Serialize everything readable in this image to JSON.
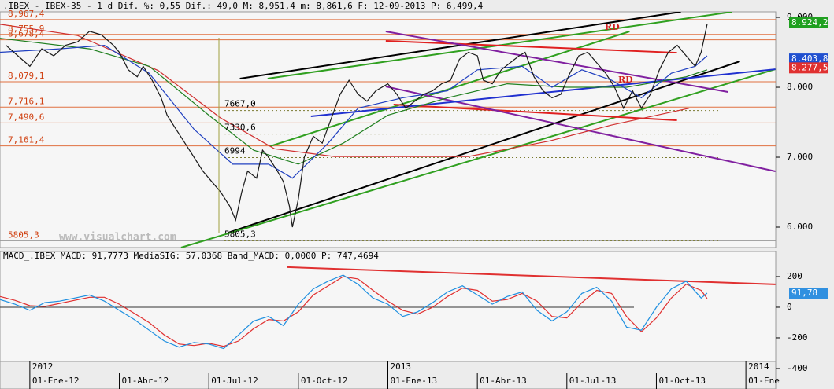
{
  "chart_data": [
    {
      "type": "line",
      "title": ".IBEX - IBEX-35 - 1 d Dif. %: 0,55 Dif.: 49,0 M: 8,951,4 m: 8,861,6 F: 12-09-2013 P: 6,499,4",
      "watermark": "www.visualchart.com",
      "annotations": [
        "RD",
        "RD"
      ],
      "xlim": [
        -1,
        25
      ],
      "ylim": [
        5708,
        9079
      ],
      "yticks": [
        {
          "value": 9000,
          "label": "9.000"
        },
        {
          "value": 8000,
          "label": "8.000"
        },
        {
          "value": 7000,
          "label": "7.000"
        },
        {
          "value": 6000,
          "label": "6.000"
        }
      ],
      "levels": [
        {
          "value": 8967.4,
          "label": "8,967,4"
        },
        {
          "value": 8755.9,
          "label": "8,755,9"
        },
        {
          "value": 8678.4,
          "label": "8,678,4"
        },
        {
          "value": 8079.1,
          "label": "8,079,1"
        },
        {
          "value": 7716.1,
          "label": "7,716,1"
        },
        {
          "value": 7490.6,
          "label": "7,490,6"
        },
        {
          "value": 7161.4,
          "label": "7,161,4"
        },
        {
          "value": 5805.3,
          "label": "5805,3"
        }
      ],
      "level_color": "#e07040",
      "notes": [
        {
          "value": 7667.0,
          "label": "7667,0"
        },
        {
          "value": 7330.6,
          "label": "7330,6"
        },
        {
          "value": 6994,
          "label": "6994"
        },
        {
          "value": 5805.3,
          "label": "5805,3"
        }
      ],
      "markers": [
        {
          "value": 8924.2,
          "label": "8.924,2",
          "color": "#20a020"
        },
        {
          "value": 8403.8,
          "label": "8.403,8",
          "color": "#2050d0"
        },
        {
          "value": 8277.5,
          "label": "8.277,5",
          "color": "#e03030"
        }
      ],
      "series": [
        {
          "color": "#d03030",
          "x": [
            -1,
            1.6,
            4.3,
            6.4,
            8.2,
            10.2,
            12.6,
            14.7,
            17.4,
            19.5,
            22.1
          ],
          "values": [
            8900,
            8740,
            8240,
            7560,
            7120,
            7010,
            7010,
            7010,
            7230,
            7460,
            7700
          ]
        },
        {
          "color": "#208020",
          "x": [
            -1,
            2,
            4,
            6,
            7.5,
            9,
            10.5,
            12,
            14,
            16,
            18,
            20,
            22,
            22.7
          ],
          "values": [
            8700,
            8550,
            8300,
            7600,
            7100,
            6900,
            7200,
            7600,
            7850,
            8050,
            8000,
            8000,
            8150,
            8250
          ]
        },
        {
          "color": "#2040c0",
          "x": [
            -1,
            1,
            2.5,
            4,
            5.5,
            6.8,
            8,
            8.8,
            10,
            11,
            12.5,
            14,
            15,
            16.5,
            17.5,
            18.5,
            19.5,
            20.5,
            21.5,
            22.3,
            22.7
          ],
          "values": [
            8500,
            8550,
            8600,
            8200,
            7400,
            6900,
            6900,
            6700,
            7200,
            7700,
            7850,
            7950,
            8250,
            8300,
            8000,
            8250,
            8100,
            7850,
            8200,
            8300,
            8450
          ]
        },
        {
          "color": "#1a1a1a",
          "x": [
            -0.8,
            -0.4,
            0,
            0.4,
            0.8,
            1.2,
            1.6,
            2.0,
            2.4,
            2.8,
            3.0,
            3.3,
            3.6,
            3.8,
            4.1,
            4.4,
            4.6,
            4.9,
            5.2,
            5.5,
            5.8,
            6.1,
            6.4,
            6.7,
            6.9,
            7.1,
            7.3,
            7.6,
            7.8,
            8.0,
            8.3,
            8.5,
            8.7,
            8.8,
            9.0,
            9.2,
            9.5,
            9.8,
            10.1,
            10.4,
            10.7,
            11.0,
            11.3,
            11.6,
            12.0,
            12.3,
            12.6,
            12.9,
            13.2,
            13.5,
            13.8,
            14.1,
            14.4,
            14.7,
            15.0,
            15.2,
            15.5,
            15.8,
            16.1,
            16.4,
            16.6,
            16.9,
            17.2,
            17.5,
            17.8,
            18.1,
            18.4,
            18.7,
            19.0,
            19.3,
            19.6,
            19.9,
            20.2,
            20.5,
            20.8,
            21.1,
            21.4,
            21.7,
            22.0,
            22.3,
            22.5,
            22.7
          ],
          "values": [
            8600,
            8450,
            8300,
            8550,
            8450,
            8600,
            8650,
            8800,
            8750,
            8600,
            8500,
            8250,
            8150,
            8300,
            8100,
            7850,
            7600,
            7400,
            7200,
            7000,
            6800,
            6650,
            6500,
            6300,
            6100,
            6500,
            6800,
            6700,
            7100,
            7000,
            6800,
            6650,
            6300,
            6000,
            6400,
            7000,
            7300,
            7200,
            7550,
            7900,
            8100,
            7900,
            7800,
            7950,
            8050,
            7900,
            7700,
            7800,
            7900,
            7950,
            8050,
            8100,
            8400,
            8500,
            8450,
            8100,
            8050,
            8250,
            8350,
            8450,
            8500,
            8150,
            7950,
            7850,
            7900,
            8200,
            8450,
            8500,
            8350,
            8200,
            8000,
            7700,
            7950,
            7700,
            7900,
            8250,
            8500,
            8600,
            8450,
            8300,
            8500,
            8900
          ]
        }
      ],
      "trendlines": [
        {
          "color": "#000000",
          "x": [
            7.04,
            21.82
          ],
          "y": [
            8124,
            9079
          ]
        },
        {
          "color": "#000000",
          "x": [
            6.65,
            23.8
          ],
          "y": [
            5921,
            8371
          ]
        },
        {
          "color": "#30a020",
          "x": [
            7.97,
            23.54
          ],
          "y": [
            8124,
            9079
          ]
        },
        {
          "color": "#30a020",
          "x": [
            5.07,
            24.99
          ],
          "y": [
            5708,
            8258
          ]
        },
        {
          "color": "#30a020",
          "x": [
            8.05,
            20.1
          ],
          "y": [
            7157,
            8798
          ]
        },
        {
          "color": "#e02020",
          "x": [
            11.93,
            21.69
          ],
          "y": [
            8663,
            8494
          ]
        },
        {
          "color": "#e02020",
          "x": [
            12.19,
            21.69
          ],
          "y": [
            7753,
            7528
          ]
        },
        {
          "color": "#8020a0",
          "x": [
            11.93,
            23.4
          ],
          "y": [
            8798,
            7933
          ]
        },
        {
          "color": "#8020a0",
          "x": [
            11.93,
            24.99
          ],
          "y": [
            8011,
            6798
          ]
        },
        {
          "color": "#2030d0",
          "x": [
            9.42,
            24.99
          ],
          "y": [
            7584,
            8258
          ]
        }
      ]
    },
    {
      "type": "line",
      "title": "MACD_.IBEX MACD: 91,7773 MediaSIG: 57,0368 Band_MACD: 0,0000 P: 747,4694",
      "xlim": [
        -1,
        25
      ],
      "ylim": [
        -354,
        364
      ],
      "yticks": [
        200,
        0,
        -200,
        -400
      ],
      "markers": [
        {
          "value": 91.78,
          "label": "91,78",
          "color": "#3090e0"
        }
      ],
      "xticks": [
        {
          "value": 0,
          "label": "01-Ene-12"
        },
        {
          "value": 3,
          "label": "01-Abr-12"
        },
        {
          "value": 6,
          "label": "01-Jul-12"
        },
        {
          "value": 9,
          "label": "01-Oct-12"
        },
        {
          "value": 12,
          "label": "01-Ene-13"
        },
        {
          "value": 15,
          "label": "01-Abr-13"
        },
        {
          "value": 18,
          "label": "01-Jul-13"
        },
        {
          "value": 21,
          "label": "01-Oct-13"
        },
        {
          "value": 24,
          "label": "01-Ene"
        }
      ],
      "year_ticks": [
        {
          "value": 0,
          "label": "2012"
        },
        {
          "value": 12,
          "label": "2013"
        },
        {
          "value": 24,
          "label": "2014"
        }
      ],
      "series": [
        {
          "color": "#e03030",
          "x": [
            -1,
            -0.5,
            0,
            0.5,
            1,
            1.5,
            2,
            2.5,
            3,
            3.5,
            4,
            4.5,
            5,
            5.5,
            6,
            6.5,
            7,
            7.5,
            8,
            8.5,
            9,
            9.5,
            10,
            10.5,
            11,
            11.5,
            12,
            12.5,
            13,
            13.5,
            14,
            14.5,
            15,
            15.5,
            16,
            16.5,
            17,
            17.5,
            18,
            18.5,
            19,
            19.5,
            20,
            20.5,
            21,
            21.5,
            22,
            22.5,
            22.7
          ],
          "values": [
            70,
            45,
            10,
            5,
            25,
            45,
            65,
            65,
            20,
            -40,
            -100,
            -180,
            -240,
            -250,
            -235,
            -255,
            -220,
            -140,
            -80,
            -90,
            -30,
            80,
            140,
            200,
            185,
            110,
            40,
            -20,
            -45,
            0,
            70,
            125,
            110,
            40,
            50,
            90,
            40,
            -60,
            -70,
            30,
            110,
            90,
            -60,
            -160,
            -70,
            60,
            150,
            110,
            57
          ]
        },
        {
          "color": "#2090e0",
          "x": [
            -1,
            -0.5,
            0,
            0.5,
            1,
            1.5,
            2,
            2.5,
            3,
            3.5,
            4,
            4.5,
            5,
            5.5,
            6,
            6.5,
            7,
            7.5,
            8,
            8.5,
            9,
            9.5,
            10,
            10.5,
            11,
            11.5,
            12,
            12.5,
            13,
            13.5,
            14,
            14.5,
            15,
            15.5,
            16,
            16.5,
            17,
            17.5,
            18,
            18.5,
            19,
            19.5,
            20,
            20.5,
            21,
            21.5,
            22,
            22.5,
            22.7
          ],
          "values": [
            50,
            20,
            -20,
            30,
            40,
            60,
            80,
            40,
            -20,
            -80,
            -150,
            -220,
            -260,
            -230,
            -240,
            -270,
            -180,
            -90,
            -60,
            -120,
            20,
            120,
            170,
            210,
            150,
            60,
            20,
            -60,
            -30,
            30,
            100,
            140,
            80,
            20,
            70,
            100,
            -20,
            -90,
            -30,
            90,
            130,
            40,
            -130,
            -150,
            0,
            120,
            170,
            60,
            92
          ]
        }
      ],
      "trendlines": [
        {
          "color": "#e03030",
          "x": [
            8.63,
            24.99
          ],
          "y": [
            262,
            149
          ]
        }
      ]
    }
  ]
}
